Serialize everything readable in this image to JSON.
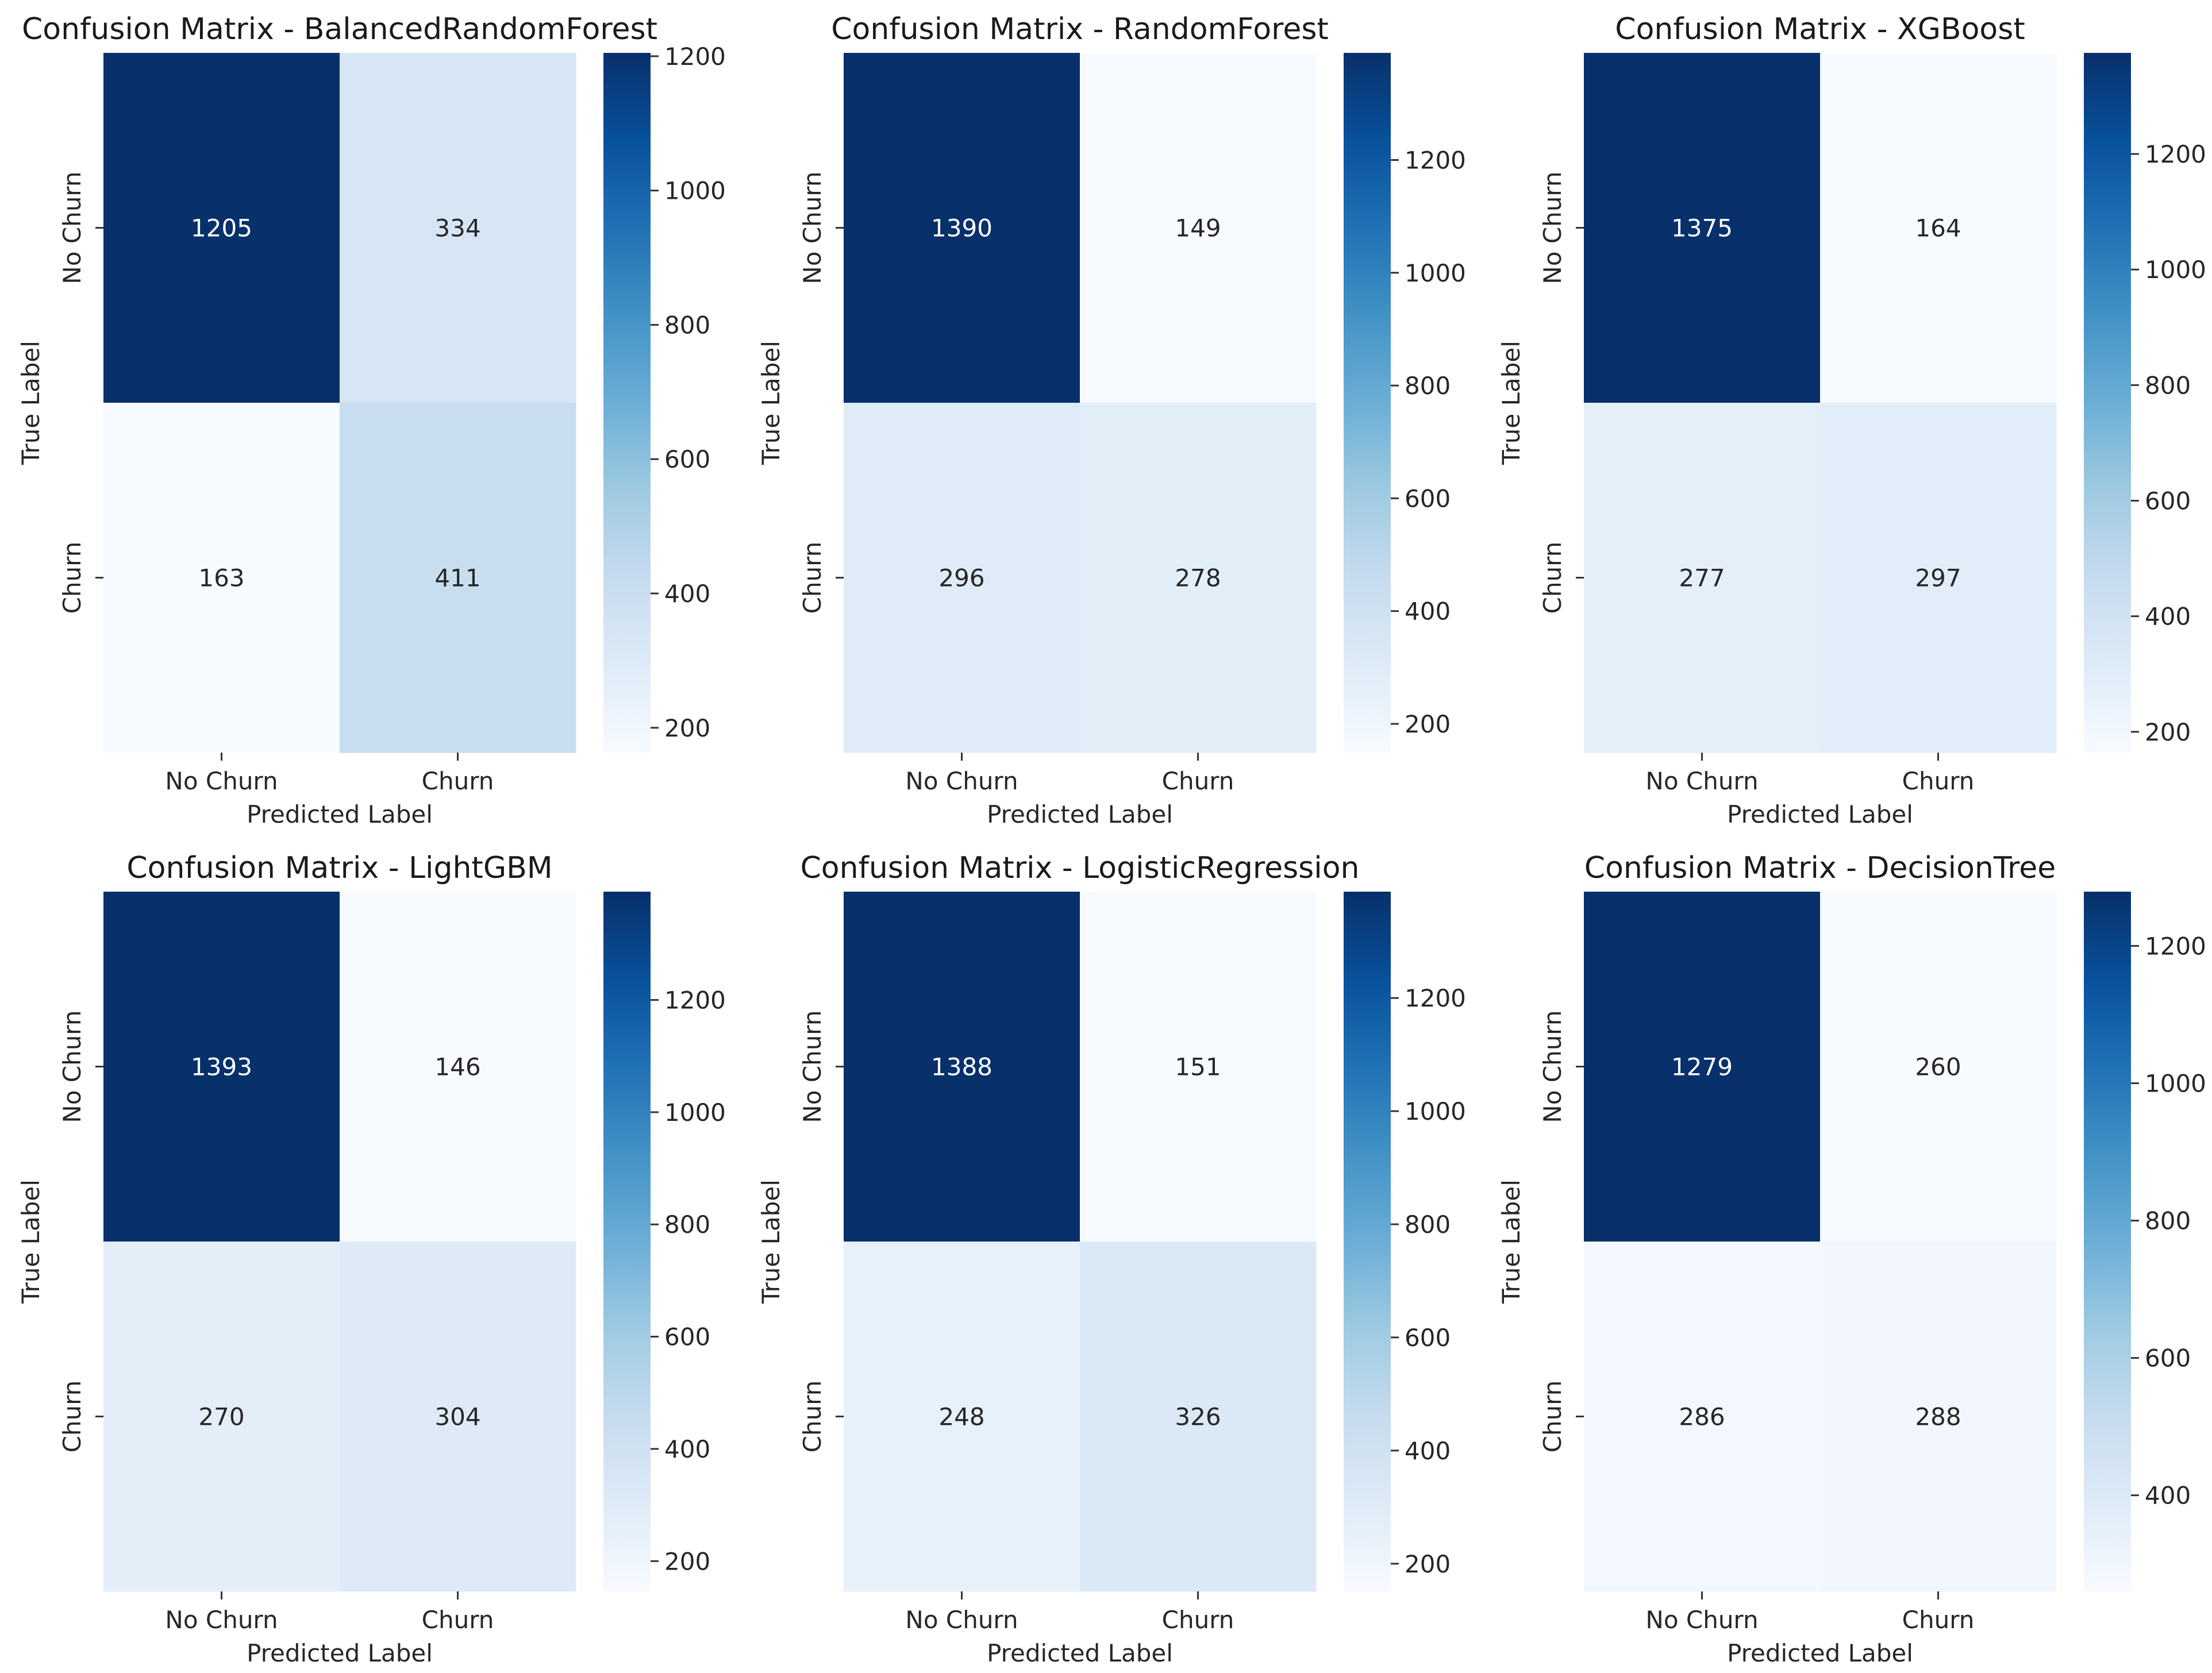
{
  "chart_data": [
    {
      "type": "heatmap",
      "title": "Confusion Matrix - BalancedRandomForest",
      "xlabel": "Predicted Label",
      "ylabel": "True Label",
      "x_categories": [
        "No Churn",
        "Churn"
      ],
      "y_categories": [
        "No Churn",
        "Churn"
      ],
      "matrix": [
        [
          1205,
          334
        ],
        [
          163,
          411
        ]
      ],
      "colorbar": {
        "cmap": "Blues",
        "range": [
          163,
          1205
        ],
        "ticks": [
          200,
          400,
          600,
          800,
          1000,
          1200
        ]
      }
    },
    {
      "type": "heatmap",
      "title": "Confusion Matrix - RandomForest",
      "xlabel": "Predicted Label",
      "ylabel": "True Label",
      "x_categories": [
        "No Churn",
        "Churn"
      ],
      "y_categories": [
        "No Churn",
        "Churn"
      ],
      "matrix": [
        [
          1390,
          149
        ],
        [
          296,
          278
        ]
      ],
      "colorbar": {
        "cmap": "Blues",
        "range": [
          149,
          1390
        ],
        "ticks": [
          200,
          400,
          600,
          800,
          1000,
          1200
        ]
      }
    },
    {
      "type": "heatmap",
      "title": "Confusion Matrix - XGBoost",
      "xlabel": "Predicted Label",
      "ylabel": "True Label",
      "x_categories": [
        "No Churn",
        "Churn"
      ],
      "y_categories": [
        "No Churn",
        "Churn"
      ],
      "matrix": [
        [
          1375,
          164
        ],
        [
          277,
          297
        ]
      ],
      "colorbar": {
        "cmap": "Blues",
        "range": [
          164,
          1375
        ],
        "ticks": [
          200,
          400,
          600,
          800,
          1000,
          1200
        ]
      }
    },
    {
      "type": "heatmap",
      "title": "Confusion Matrix - LightGBM",
      "xlabel": "Predicted Label",
      "ylabel": "True Label",
      "x_categories": [
        "No Churn",
        "Churn"
      ],
      "y_categories": [
        "No Churn",
        "Churn"
      ],
      "matrix": [
        [
          1393,
          146
        ],
        [
          270,
          304
        ]
      ],
      "colorbar": {
        "cmap": "Blues",
        "range": [
          146,
          1393
        ],
        "ticks": [
          200,
          400,
          600,
          800,
          1000,
          1200
        ]
      }
    },
    {
      "type": "heatmap",
      "title": "Confusion Matrix - LogisticRegression",
      "xlabel": "Predicted Label",
      "ylabel": "True Label",
      "x_categories": [
        "No Churn",
        "Churn"
      ],
      "y_categories": [
        "No Churn",
        "Churn"
      ],
      "matrix": [
        [
          1388,
          151
        ],
        [
          248,
          326
        ]
      ],
      "colorbar": {
        "cmap": "Blues",
        "range": [
          151,
          1388
        ],
        "ticks": [
          200,
          400,
          600,
          800,
          1000,
          1200
        ]
      }
    },
    {
      "type": "heatmap",
      "title": "Confusion Matrix - DecisionTree",
      "xlabel": "Predicted Label",
      "ylabel": "True Label",
      "x_categories": [
        "No Churn",
        "Churn"
      ],
      "y_categories": [
        "No Churn",
        "Churn"
      ],
      "matrix": [
        [
          1279,
          260
        ],
        [
          286,
          288
        ]
      ],
      "colorbar": {
        "cmap": "Blues",
        "range": [
          260,
          1279
        ],
        "ticks": [
          400,
          600,
          800,
          1000,
          1200
        ]
      }
    }
  ]
}
